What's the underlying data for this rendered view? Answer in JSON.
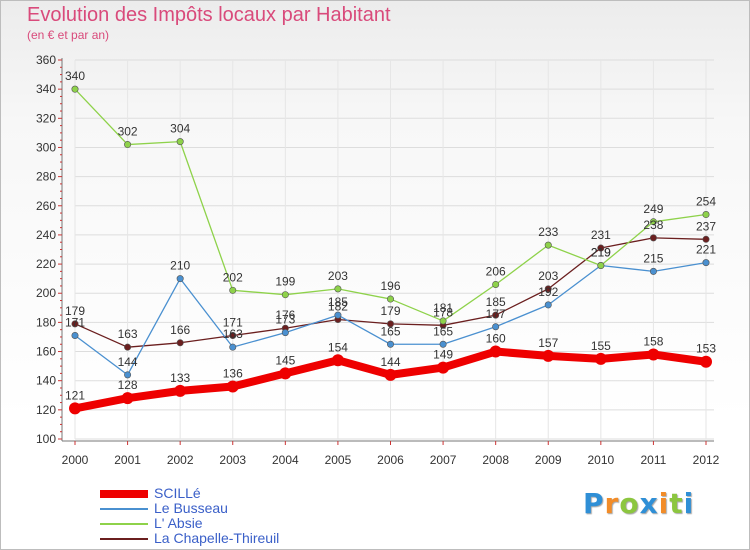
{
  "header": {
    "title": "Evolution des Impôts locaux par Habitant",
    "subtitle": "(en € et par an)"
  },
  "logo": {
    "text": "Proxiti",
    "letters": [
      {
        "char": "P",
        "color": "#2f8fd6"
      },
      {
        "char": "r",
        "color": "#f28c28"
      },
      {
        "char": "o",
        "color": "#8cc63f"
      },
      {
        "char": "x",
        "color": "#2f8fd6"
      },
      {
        "char": "i",
        "color": "#f28c28"
      },
      {
        "char": "t",
        "color": "#8cc63f"
      },
      {
        "char": "i",
        "color": "#2f8fd6"
      }
    ]
  },
  "chart_data": {
    "type": "line",
    "title": "Evolution des Impôts locaux par Habitant",
    "subtitle": "(en € et par an)",
    "xlabel": "",
    "ylabel": "",
    "categories": [
      "2000",
      "2001",
      "2002",
      "2003",
      "2004",
      "2005",
      "2006",
      "2007",
      "2008",
      "2009",
      "2010",
      "2011",
      "2012"
    ],
    "ylim": [
      100,
      360
    ],
    "yticks": [
      100,
      120,
      140,
      160,
      180,
      200,
      220,
      240,
      260,
      280,
      300,
      320,
      340,
      360
    ],
    "grid": true,
    "legend_position": "bottom-left",
    "series": [
      {
        "name": "La Chapelle-Thireuil",
        "color": "#6b1f1f",
        "weight": "thin",
        "values": [
          179,
          163,
          166,
          171,
          176,
          182,
          179,
          178,
          185,
          203,
          231,
          238,
          237
        ],
        "labels": [
          "179",
          "163",
          "166",
          "171",
          "176",
          "182",
          "179",
          "178",
          "185",
          "203",
          "231",
          "238",
          "237"
        ]
      },
      {
        "name": "Le Busseau",
        "color": "#4a90d0",
        "weight": "thin",
        "values": [
          171,
          144,
          210,
          163,
          173,
          185,
          165,
          165,
          177,
          192,
          219,
          215,
          221
        ],
        "labels": [
          "171",
          "144",
          "210",
          "163",
          "173",
          "185",
          "165",
          "165",
          "177",
          "192",
          "219",
          "215",
          "221"
        ]
      },
      {
        "name": "L' Absie",
        "color": "#8ed24a",
        "weight": "thin",
        "values": [
          340,
          302,
          304,
          202,
          199,
          203,
          196,
          181,
          206,
          233,
          219,
          249,
          254
        ],
        "labels": [
          "340",
          "302",
          "304",
          "202",
          "199",
          "203",
          "196",
          "181",
          "206",
          "233",
          "219",
          "249",
          "254"
        ]
      },
      {
        "name": "SCILLé",
        "color": "#ee0000",
        "weight": "thick",
        "values": [
          121,
          128,
          133,
          136,
          145,
          154,
          144,
          149,
          160,
          157,
          155,
          158,
          153
        ],
        "labels": [
          "121",
          "128",
          "133",
          "136",
          "145",
          "154",
          "144",
          "149",
          "160",
          "157",
          "155",
          "158",
          "153"
        ]
      }
    ],
    "legend_order": [
      "SCILLé",
      "Le Busseau",
      "L' Absie",
      "La Chapelle-Thireuil"
    ]
  }
}
